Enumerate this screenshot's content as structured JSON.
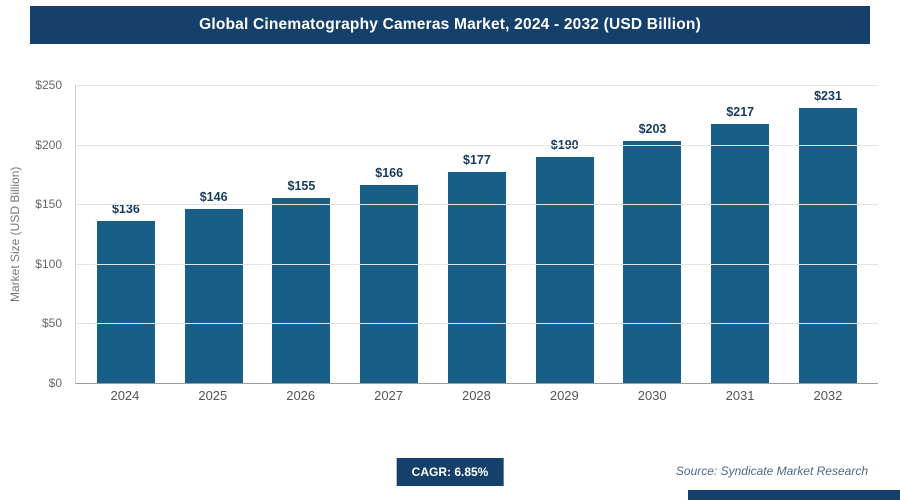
{
  "header": {
    "title": "Global Cinematography Cameras Market, 2024 - 2032 (USD Billion)"
  },
  "chart_data": {
    "type": "bar",
    "title": "Global Cinematography Cameras Market, 2024 - 2032 (USD Billion)",
    "categories": [
      "2024",
      "2025",
      "2026",
      "2027",
      "2028",
      "2029",
      "2030",
      "2031",
      "2032"
    ],
    "values": [
      136,
      146,
      155,
      166,
      177,
      190,
      203,
      217,
      231
    ],
    "labels": [
      "$136",
      "$146",
      "$155",
      "$166",
      "$177",
      "$190",
      "$203",
      "$217",
      "$231"
    ],
    "xlabel": "",
    "ylabel": "Market Size (USD Billion)",
    "ylim": [
      0,
      250
    ],
    "yticks": [
      "$250",
      "$200",
      "$150",
      "$100",
      "$50",
      "$0"
    ],
    "grid": true,
    "legend": "none",
    "bar_color": "#175f87"
  },
  "footer": {
    "cagr_label": "CAGR: 6.85%",
    "source": "Source: Syndicate Market Research"
  },
  "colors": {
    "banner_bg": "#14406b",
    "badge_bg": "#14406b",
    "strip_bg": "#14406b",
    "value_label": "#1a3a5c"
  }
}
